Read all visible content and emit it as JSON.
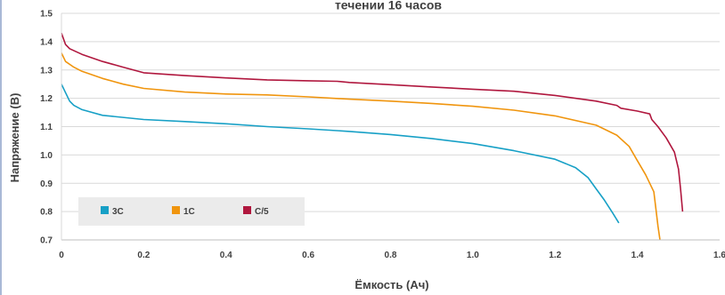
{
  "chart_data": {
    "type": "line",
    "title": "течении 16 часов",
    "xlabel": "Ёмкость (Ач)",
    "ylabel": "Напряжение (В)",
    "xlim": [
      0,
      1.6
    ],
    "ylim": [
      0.7,
      1.5
    ],
    "x_ticks": [
      "0",
      "0.2",
      "0.4",
      "0.6",
      "0.8",
      "1.0",
      "1.2",
      "1.4",
      "1.6"
    ],
    "y_ticks": [
      "0.7",
      "0.8",
      "0.9",
      "1.0",
      "1.1",
      "1.2",
      "1.3",
      "1.4",
      "1.5"
    ],
    "grid": "horizontal",
    "legend": "bottom-left",
    "series": [
      {
        "name": "3C",
        "color": "#17a0c6",
        "points": [
          [
            0.0,
            1.25
          ],
          [
            0.01,
            1.22
          ],
          [
            0.02,
            1.19
          ],
          [
            0.03,
            1.175
          ],
          [
            0.05,
            1.16
          ],
          [
            0.1,
            1.14
          ],
          [
            0.2,
            1.125
          ],
          [
            0.3,
            1.118
          ],
          [
            0.4,
            1.11
          ],
          [
            0.5,
            1.1
          ],
          [
            0.6,
            1.092
          ],
          [
            0.7,
            1.083
          ],
          [
            0.8,
            1.072
          ],
          [
            0.9,
            1.058
          ],
          [
            1.0,
            1.04
          ],
          [
            1.1,
            1.015
          ],
          [
            1.2,
            0.985
          ],
          [
            1.25,
            0.955
          ],
          [
            1.28,
            0.92
          ],
          [
            1.3,
            0.88
          ],
          [
            1.32,
            0.84
          ],
          [
            1.34,
            0.795
          ],
          [
            1.355,
            0.76
          ]
        ]
      },
      {
        "name": "1C",
        "color": "#f0950e",
        "points": [
          [
            0.0,
            1.36
          ],
          [
            0.01,
            1.33
          ],
          [
            0.03,
            1.31
          ],
          [
            0.05,
            1.295
          ],
          [
            0.1,
            1.27
          ],
          [
            0.15,
            1.25
          ],
          [
            0.2,
            1.235
          ],
          [
            0.3,
            1.222
          ],
          [
            0.4,
            1.215
          ],
          [
            0.5,
            1.212
          ],
          [
            0.6,
            1.205
          ],
          [
            0.7,
            1.197
          ],
          [
            0.8,
            1.19
          ],
          [
            0.9,
            1.182
          ],
          [
            1.0,
            1.172
          ],
          [
            1.1,
            1.158
          ],
          [
            1.2,
            1.138
          ],
          [
            1.3,
            1.105
          ],
          [
            1.35,
            1.07
          ],
          [
            1.38,
            1.03
          ],
          [
            1.4,
            0.98
          ],
          [
            1.42,
            0.93
          ],
          [
            1.44,
            0.87
          ],
          [
            1.445,
            0.81
          ],
          [
            1.45,
            0.75
          ],
          [
            1.455,
            0.7
          ]
        ]
      },
      {
        "name": "C/5",
        "color": "#b0173e",
        "points": [
          [
            0.0,
            1.43
          ],
          [
            0.01,
            1.39
          ],
          [
            0.02,
            1.375
          ],
          [
            0.05,
            1.355
          ],
          [
            0.1,
            1.33
          ],
          [
            0.15,
            1.31
          ],
          [
            0.2,
            1.29
          ],
          [
            0.3,
            1.28
          ],
          [
            0.4,
            1.272
          ],
          [
            0.5,
            1.265
          ],
          [
            0.6,
            1.262
          ],
          [
            0.67,
            1.26
          ],
          [
            0.7,
            1.256
          ],
          [
            0.8,
            1.248
          ],
          [
            0.9,
            1.24
          ],
          [
            1.0,
            1.232
          ],
          [
            1.1,
            1.225
          ],
          [
            1.2,
            1.21
          ],
          [
            1.3,
            1.19
          ],
          [
            1.35,
            1.175
          ],
          [
            1.36,
            1.165
          ],
          [
            1.4,
            1.155
          ],
          [
            1.43,
            1.145
          ],
          [
            1.435,
            1.125
          ],
          [
            1.45,
            1.1
          ],
          [
            1.47,
            1.06
          ],
          [
            1.49,
            1.01
          ],
          [
            1.5,
            0.95
          ],
          [
            1.505,
            0.88
          ],
          [
            1.51,
            0.8
          ]
        ]
      }
    ]
  }
}
